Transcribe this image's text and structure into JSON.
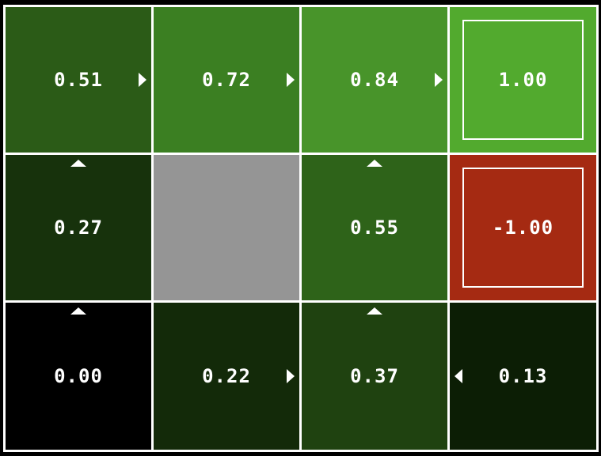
{
  "gridworld": {
    "rows": 3,
    "cols": 4,
    "cells": [
      {
        "row": 0,
        "col": 0,
        "value": "0.51",
        "policy": "right",
        "kind": "normal",
        "color": "#2b5b17"
      },
      {
        "row": 0,
        "col": 1,
        "value": "0.72",
        "policy": "right",
        "kind": "normal",
        "color": "#3b7f22"
      },
      {
        "row": 0,
        "col": 2,
        "value": "0.84",
        "policy": "right",
        "kind": "normal",
        "color": "#48942a"
      },
      {
        "row": 0,
        "col": 3,
        "value": "1.00",
        "policy": null,
        "kind": "terminal",
        "color": "#52aa2e"
      },
      {
        "row": 1,
        "col": 0,
        "value": "0.27",
        "policy": "up",
        "kind": "normal",
        "color": "#17320c"
      },
      {
        "row": 1,
        "col": 1,
        "value": null,
        "policy": null,
        "kind": "wall",
        "color": "#959595"
      },
      {
        "row": 1,
        "col": 2,
        "value": "0.55",
        "policy": "up",
        "kind": "normal",
        "color": "#2e6319"
      },
      {
        "row": 1,
        "col": 3,
        "value": "-1.00",
        "policy": null,
        "kind": "terminal",
        "color": "#a52a12"
      },
      {
        "row": 2,
        "col": 0,
        "value": "0.00",
        "policy": "up",
        "kind": "normal",
        "color": "#000000"
      },
      {
        "row": 2,
        "col": 1,
        "value": "0.22",
        "policy": "right",
        "kind": "normal",
        "color": "#132a09"
      },
      {
        "row": 2,
        "col": 2,
        "value": "0.37",
        "policy": "up",
        "kind": "normal",
        "color": "#1f4210"
      },
      {
        "row": 2,
        "col": 3,
        "value": "0.13",
        "policy": "left",
        "kind": "normal",
        "color": "#0c1e05"
      }
    ]
  }
}
